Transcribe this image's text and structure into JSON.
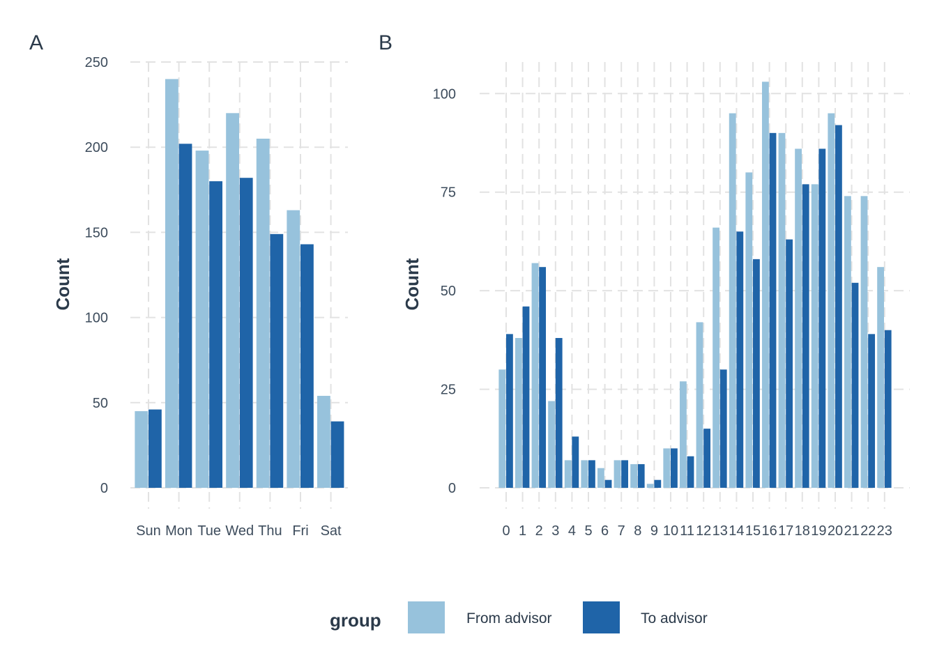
{
  "colors": {
    "from": "#97c2dc",
    "to": "#1f64a8"
  },
  "legend": {
    "title": "group",
    "items": [
      {
        "label": "From advisor",
        "color": "#97c2dc"
      },
      {
        "label": "To advisor",
        "color": "#1f64a8"
      }
    ]
  },
  "chart_data": [
    {
      "panel": "A",
      "type": "bar",
      "title": "",
      "xlabel": "",
      "ylabel": "Count",
      "categories": [
        "Sun",
        "Mon",
        "Tue",
        "Wed",
        "Thu",
        "Fri",
        "Sat"
      ],
      "ylim": [
        0,
        250
      ],
      "yticks": [
        0,
        50,
        100,
        150,
        200,
        250
      ],
      "grid": true,
      "series": [
        {
          "name": "From advisor",
          "values": [
            45,
            240,
            198,
            220,
            205,
            163,
            54
          ]
        },
        {
          "name": "To advisor",
          "values": [
            46,
            202,
            180,
            182,
            149,
            143,
            39
          ]
        }
      ]
    },
    {
      "panel": "B",
      "type": "bar",
      "title": "",
      "xlabel": "",
      "ylabel": "Count",
      "categories": [
        "0",
        "1",
        "2",
        "3",
        "4",
        "5",
        "6",
        "7",
        "8",
        "9",
        "10",
        "11",
        "12",
        "13",
        "14",
        "15",
        "16",
        "17",
        "18",
        "19",
        "20",
        "21",
        "22",
        "23"
      ],
      "ylim": [
        0,
        108
      ],
      "yticks": [
        0,
        25,
        50,
        75,
        100
      ],
      "grid": true,
      "series": [
        {
          "name": "From advisor",
          "values": [
            30,
            38,
            57,
            22,
            7,
            7,
            5,
            7,
            6,
            1,
            10,
            27,
            42,
            66,
            95,
            80,
            103,
            90,
            86,
            77,
            95,
            74,
            74,
            56
          ]
        },
        {
          "name": "To advisor",
          "values": [
            39,
            46,
            56,
            38,
            13,
            7,
            2,
            7,
            6,
            2,
            10,
            8,
            15,
            30,
            65,
            58,
            90,
            63,
            77,
            86,
            92,
            52,
            39,
            40
          ]
        }
      ]
    }
  ]
}
